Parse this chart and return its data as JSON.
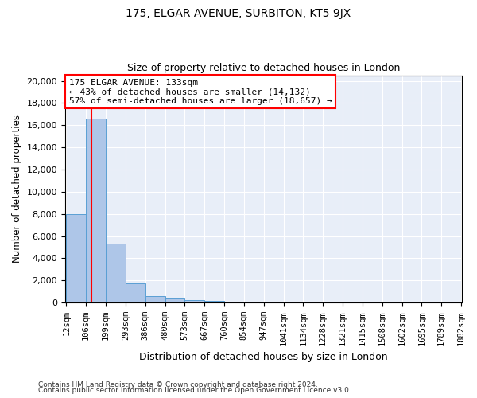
{
  "title1": "175, ELGAR AVENUE, SURBITON, KT5 9JX",
  "title2": "Size of property relative to detached houses in London",
  "xlabel": "Distribution of detached houses by size in London",
  "ylabel": "Number of detached properties",
  "annotation_line1": "175 ELGAR AVENUE: 133sqm",
  "annotation_line2": "← 43% of detached houses are smaller (14,132)",
  "annotation_line3": "57% of semi-detached houses are larger (18,657) →",
  "property_size": 133,
  "bar_color": "#aec6e8",
  "bar_edge_color": "#5a9fd4",
  "vline_color": "red",
  "background_color": "#e8eef8",
  "footer1": "Contains HM Land Registry data © Crown copyright and database right 2024.",
  "footer2": "Contains public sector information licensed under the Open Government Licence v3.0.",
  "bin_edges": [
    12,
    106,
    199,
    293,
    386,
    480,
    573,
    667,
    760,
    854,
    947,
    1041,
    1134,
    1228,
    1321,
    1415,
    1508,
    1602,
    1695,
    1789,
    1882
  ],
  "bin_heights": [
    8000,
    16600,
    5300,
    1750,
    620,
    370,
    220,
    160,
    120,
    90,
    75,
    60,
    50,
    42,
    35,
    30,
    25,
    20,
    15,
    10
  ],
  "ylim": [
    0,
    20500
  ],
  "yticks": [
    0,
    2000,
    4000,
    6000,
    8000,
    10000,
    12000,
    14000,
    16000,
    18000,
    20000
  ]
}
